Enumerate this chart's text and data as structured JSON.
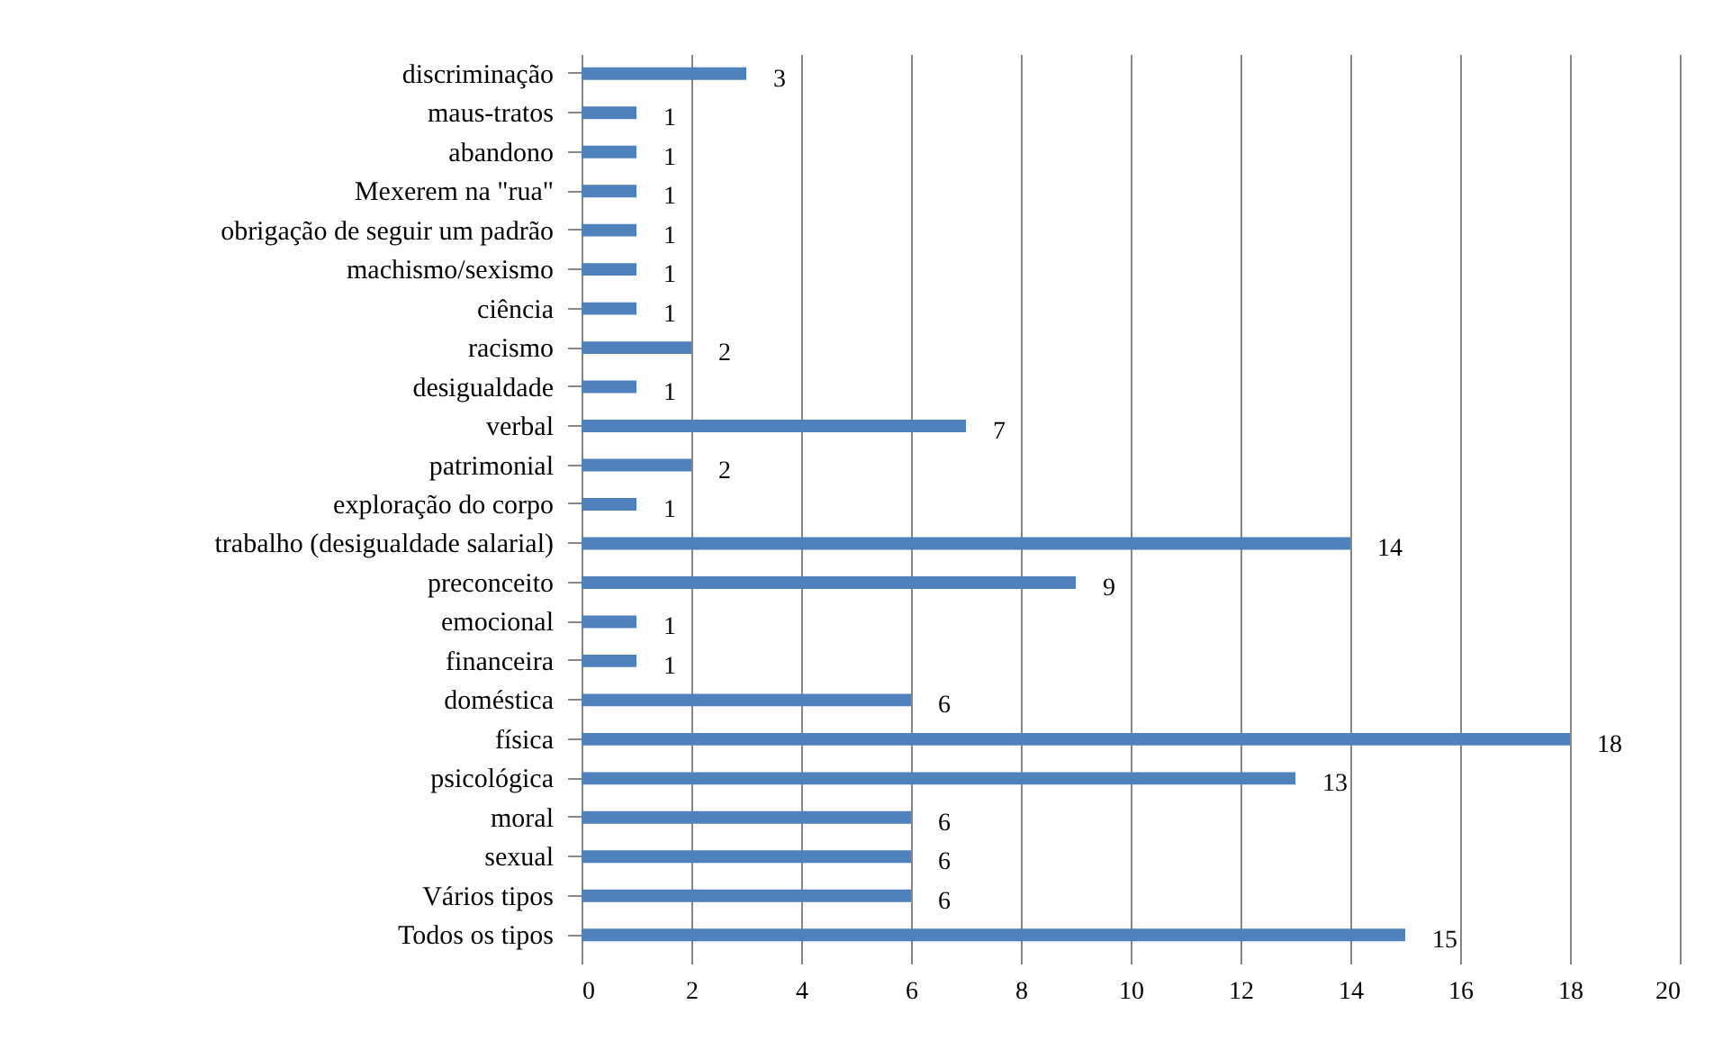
{
  "chart_data": {
    "type": "bar",
    "orientation": "horizontal",
    "categories": [
      "discriminação",
      "maus-tratos",
      "abandono",
      "Mexerem na \"rua\"",
      "obrigação de seguir um padrão",
      "machismo/sexismo",
      "ciência",
      "racismo",
      "desigualdade",
      "verbal",
      "patrimonial",
      "exploração do corpo",
      "trabalho (desigualdade salarial)",
      "preconceito",
      "emocional",
      "financeira",
      "doméstica",
      "física",
      "psicológica",
      "moral",
      "sexual",
      "Vários tipos",
      "Todos os tipos"
    ],
    "values": [
      3,
      1,
      1,
      1,
      1,
      1,
      1,
      2,
      1,
      7,
      2,
      1,
      14,
      9,
      1,
      1,
      6,
      18,
      13,
      6,
      6,
      6,
      15
    ],
    "color": "#4f81bd",
    "xlim": [
      0,
      20
    ],
    "xticks": [
      0,
      2,
      4,
      6,
      8,
      10,
      12,
      14,
      16,
      18,
      20
    ],
    "grid": "x",
    "data_labels": true
  }
}
